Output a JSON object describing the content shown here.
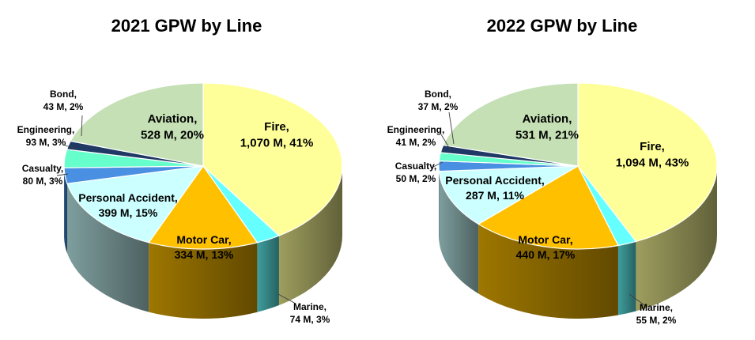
{
  "chart_data": [
    {
      "type": "pie",
      "title": "2021 GPW by Line",
      "slices": [
        {
          "category": "Fire",
          "value": 1070,
          "value_label": "1,070 M",
          "percent": 41,
          "percent_label": "41%",
          "color": "#FFFF99"
        },
        {
          "category": "Marine",
          "value": 74,
          "value_label": "74 M",
          "percent": 3,
          "percent_label": "3%",
          "color": "#66FFFF"
        },
        {
          "category": "Motor Car",
          "value": 334,
          "value_label": "334 M",
          "percent": 13,
          "percent_label": "13%",
          "color": "#FFC000"
        },
        {
          "category": "Personal Accident",
          "value": 399,
          "value_label": "399 M",
          "percent": 15,
          "percent_label": "15%",
          "color": "#CCFFFF"
        },
        {
          "category": "Casualty",
          "value": 80,
          "value_label": "80 M",
          "percent": 3,
          "percent_label": "3%",
          "color": "#4A90E2"
        },
        {
          "category": "Engineering",
          "value": 93,
          "value_label": "93 M",
          "percent": 3,
          "percent_label": "3%",
          "color": "#66FFCC"
        },
        {
          "category": "Bond",
          "value": 43,
          "value_label": "43 M",
          "percent": 2,
          "percent_label": "2%",
          "color": "#1F3864"
        },
        {
          "category": "Aviation",
          "value": 528,
          "value_label": "528 M",
          "percent": 20,
          "percent_label": "20%",
          "color": "#C5E0B4"
        }
      ]
    },
    {
      "type": "pie",
      "title": "2022 GPW by Line",
      "slices": [
        {
          "category": "Fire",
          "value": 1094,
          "value_label": "1,094 M",
          "percent": 43,
          "percent_label": "43%",
          "color": "#FFFF99"
        },
        {
          "category": "Marine",
          "value": 55,
          "value_label": "55 M",
          "percent": 2,
          "percent_label": "2%",
          "color": "#66FFFF"
        },
        {
          "category": "Motor Car",
          "value": 440,
          "value_label": "440 M",
          "percent": 17,
          "percent_label": "17%",
          "color": "#FFC000"
        },
        {
          "category": "Personal Accident",
          "value": 287,
          "value_label": "287 M",
          "percent": 11,
          "percent_label": "11%",
          "color": "#CCFFFF"
        },
        {
          "category": "Casualty",
          "value": 50,
          "value_label": "50 M",
          "percent": 2,
          "percent_label": "2%",
          "color": "#4A90E2"
        },
        {
          "category": "Engineering",
          "value": 41,
          "value_label": "41 M",
          "percent": 2,
          "percent_label": "2%",
          "color": "#66FFCC"
        },
        {
          "category": "Bond",
          "value": 37,
          "value_label": "37 M",
          "percent": 2,
          "percent_label": "2%",
          "color": "#1F3864"
        },
        {
          "category": "Aviation",
          "value": 531,
          "value_label": "531 M",
          "percent": 21,
          "percent_label": "21%",
          "color": "#C5E0B4"
        }
      ]
    }
  ]
}
